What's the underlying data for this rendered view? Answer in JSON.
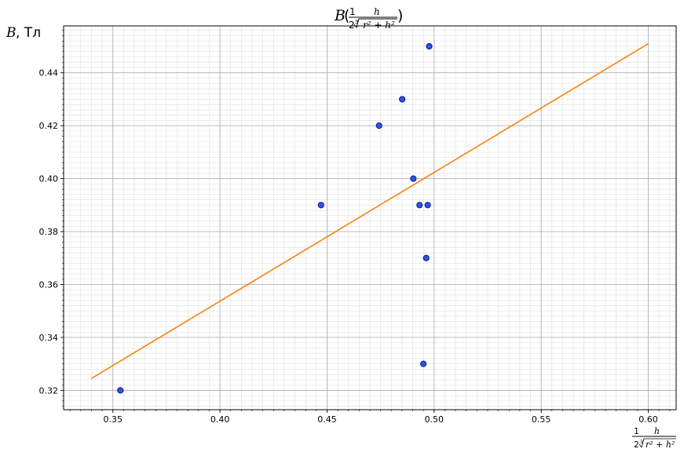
{
  "chart_data": {
    "type": "scatter",
    "title": {
      "func": "B",
      "frac_num": "1",
      "frac_den_coef": "2",
      "root_index": "3",
      "root_body": "r² + h²",
      "inner_num": "h"
    },
    "ylabel": {
      "var": "B",
      "unit": ", Тл"
    },
    "xlabel": {
      "frac_num": "1",
      "frac_den_coef": "2",
      "root_index": "3",
      "root_body": "r² + h²",
      "inner_num": "h"
    },
    "xlim": [
      0.327,
      0.613
    ],
    "ylim": [
      0.3127,
      0.4577
    ],
    "x_ticks": [
      "0.35",
      "0.40",
      "0.45",
      "0.50",
      "0.55",
      "0.60"
    ],
    "y_ticks": [
      "0.32",
      "0.34",
      "0.36",
      "0.38",
      "0.40",
      "0.42",
      "0.44"
    ],
    "grid": true,
    "points": [
      {
        "x": 0.3535,
        "y": 0.32
      },
      {
        "x": 0.4472,
        "y": 0.39
      },
      {
        "x": 0.4743,
        "y": 0.42
      },
      {
        "x": 0.4851,
        "y": 0.43
      },
      {
        "x": 0.4903,
        "y": 0.4
      },
      {
        "x": 0.4932,
        "y": 0.39
      },
      {
        "x": 0.495,
        "y": 0.33
      },
      {
        "x": 0.4963,
        "y": 0.37
      },
      {
        "x": 0.497,
        "y": 0.39
      },
      {
        "x": 0.4977,
        "y": 0.45
      }
    ],
    "fit_line": {
      "x": [
        0.34,
        0.6
      ],
      "y": [
        0.3245,
        0.451
      ]
    },
    "colors": {
      "points_fill": "#2f52e8",
      "points_edge": "#0a1a8c",
      "fit_line": "#ff7f0e",
      "grid_major": "#b0b0b0",
      "grid_minor": "#e0e0e0"
    }
  }
}
